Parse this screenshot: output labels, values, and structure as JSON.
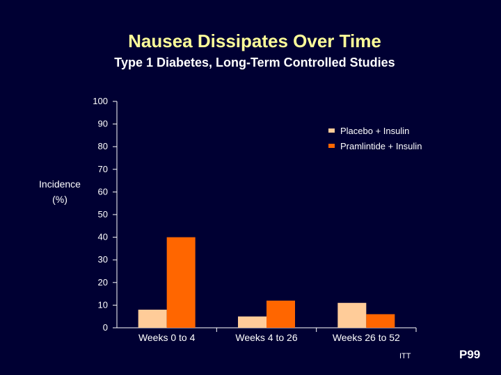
{
  "slide": {
    "footnote": "ITT",
    "page_number": "P99"
  },
  "colors": {
    "background": "#000033",
    "title": "#ffff99",
    "placebo": "#ffcc99",
    "pramlintide": "#ff6600",
    "axis": "#ffffff"
  },
  "chart_data": {
    "type": "bar",
    "title": "Nausea Dissipates Over Time",
    "subtitle": "Type 1 Diabetes, Long-Term Controlled Studies",
    "ylabel_line1": "Incidence",
    "ylabel_line2": "(%)",
    "xlabel": "",
    "ylim": [
      0,
      100
    ],
    "yticks": [
      0,
      10,
      20,
      30,
      40,
      50,
      60,
      70,
      80,
      90,
      100
    ],
    "grid": false,
    "legend_position": "top-right",
    "categories": [
      "Weeks 0 to 4",
      "Weeks 4 to 26",
      "Weeks 26 to 52"
    ],
    "series": [
      {
        "name": "Placebo + Insulin",
        "color": "#ffcc99",
        "values": [
          8,
          5,
          11
        ]
      },
      {
        "name": "Pramlintide + Insulin",
        "color": "#ff6600",
        "values": [
          40,
          12,
          6
        ]
      }
    ]
  }
}
